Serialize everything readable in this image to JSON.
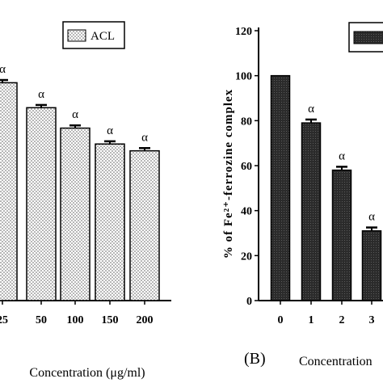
{
  "chart_data": [
    {
      "type": "bar",
      "pattern": "dotted",
      "categories": [
        "25",
        "50",
        "100",
        "150",
        "200"
      ],
      "values": [
        96,
        85,
        76,
        69,
        66
      ],
      "errors": [
        1.2,
        1.2,
        1.2,
        1.2,
        1.2
      ],
      "annotations": [
        "α",
        "α",
        "α",
        "α",
        "α"
      ],
      "legend": [
        "ACL"
      ],
      "legend_position": "top-right",
      "xlabel": "Concentration (μg/ml)",
      "ylim": [
        0,
        120
      ]
    },
    {
      "type": "bar",
      "pattern": "dark",
      "panel_label": "(B)",
      "categories": [
        "0",
        "1",
        "2",
        "3"
      ],
      "values": [
        100,
        79,
        58,
        31
      ],
      "errors": [
        0,
        1.5,
        1.5,
        1.5
      ],
      "annotations": [
        "",
        "α",
        "α",
        "α"
      ],
      "ylabel": "% of Fe²⁺-ferrozine complex",
      "xlabel": "Concentration",
      "yticks": [
        0,
        20,
        40,
        60,
        80,
        100,
        120
      ],
      "ylim": [
        0,
        120
      ],
      "grid": false
    }
  ],
  "colors": {
    "bar_b": "#2b2b2b",
    "bar_a_fill": "#e8e8e8",
    "axis": "#000000"
  }
}
